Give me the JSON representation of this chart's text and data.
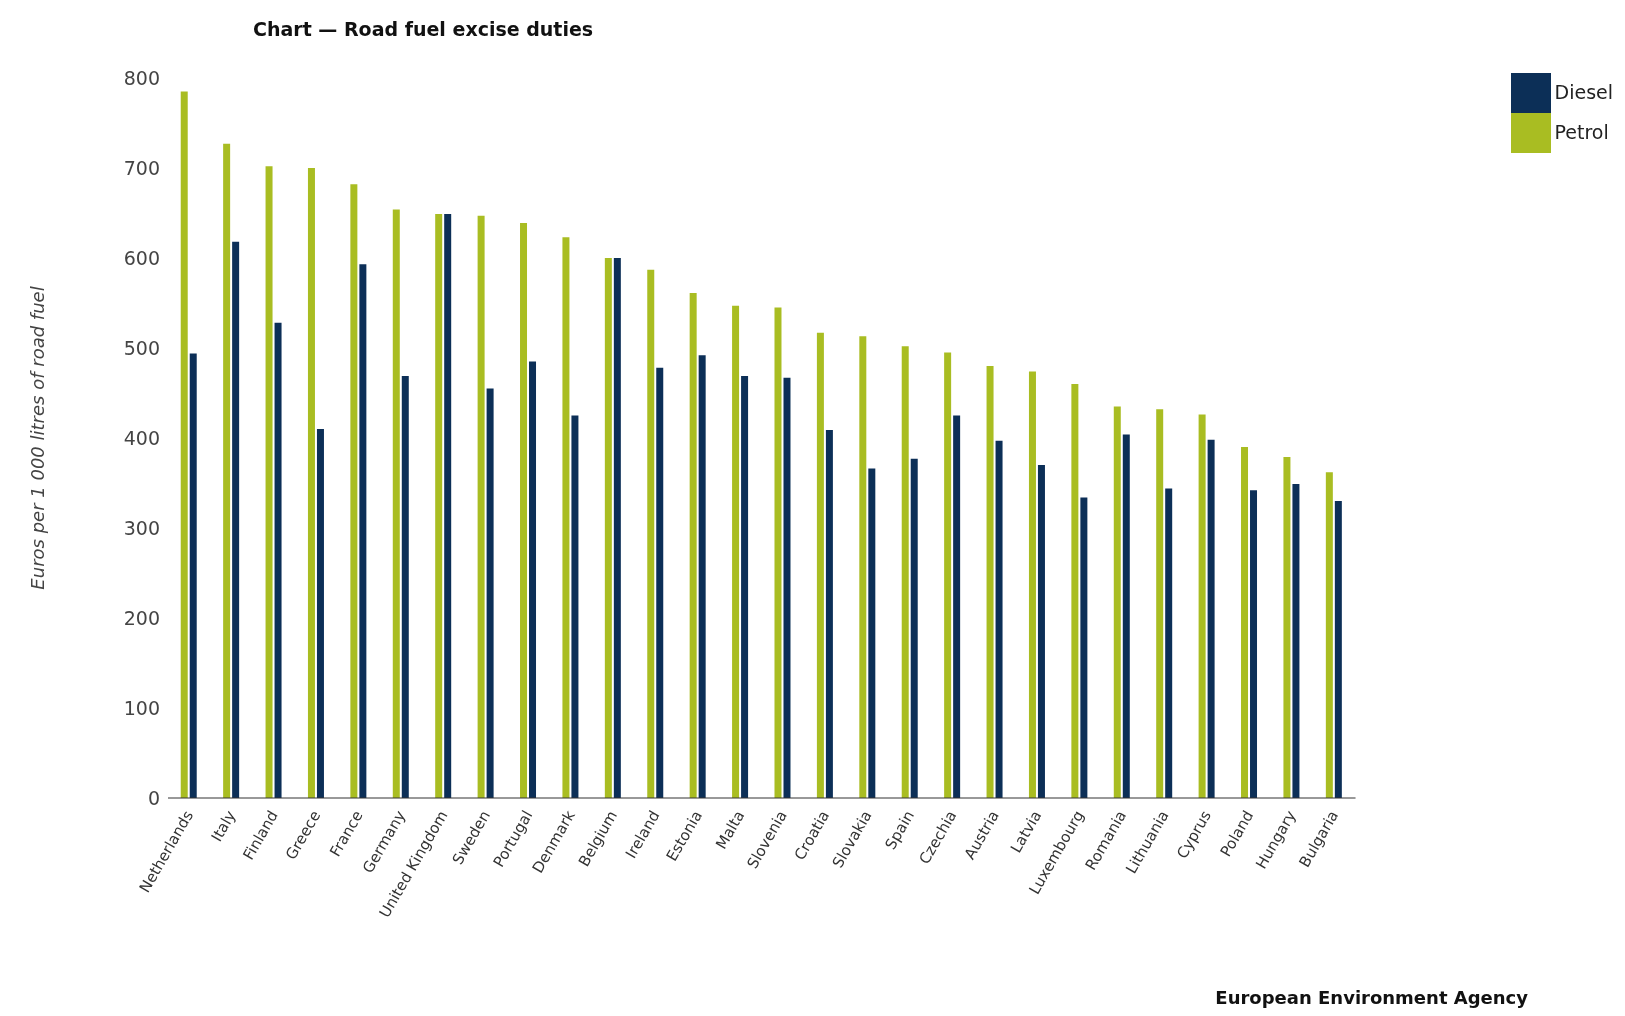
{
  "chart_data": {
    "type": "bar",
    "title": "Chart — Road fuel excise duties",
    "ylabel": "Euros per 1 000 litres of road fuel",
    "categories": [
      "Netherlands",
      "Italy",
      "Finland",
      "Greece",
      "France",
      "Germany",
      "United Kingdom",
      "Sweden",
      "Portugal",
      "Denmark",
      "Belgium",
      "Ireland",
      "Estonia",
      "Malta",
      "Slovenia",
      "Croatia",
      "Slovakia",
      "Spain",
      "Czechia",
      "Austria",
      "Latvia",
      "Luxembourg",
      "Romania",
      "Lithuania",
      "Cyprus",
      "Poland",
      "Hungary",
      "Bulgaria"
    ],
    "series": [
      {
        "name": "Petrol",
        "color": "#a9bd22",
        "values": [
          785,
          727,
          702,
          700,
          682,
          654,
          649,
          647,
          639,
          623,
          600,
          587,
          561,
          547,
          545,
          517,
          513,
          502,
          495,
          480,
          474,
          460,
          435,
          432,
          426,
          390,
          379,
          362
        ]
      },
      {
        "name": "Diesel",
        "color": "#0c2f57",
        "values": [
          494,
          618,
          528,
          410,
          593,
          469,
          649,
          455,
          485,
          425,
          600,
          478,
          492,
          469,
          467,
          409,
          366,
          377,
          425,
          397,
          370,
          334,
          404,
          344,
          398,
          342,
          349,
          330
        ]
      }
    ],
    "ylim": [
      0,
      800
    ],
    "yticks": [
      0,
      100,
      200,
      300,
      400,
      500,
      600,
      700,
      800
    ],
    "grid": false,
    "legend": "top right",
    "annotations": [
      "European Environment Agency"
    ]
  }
}
